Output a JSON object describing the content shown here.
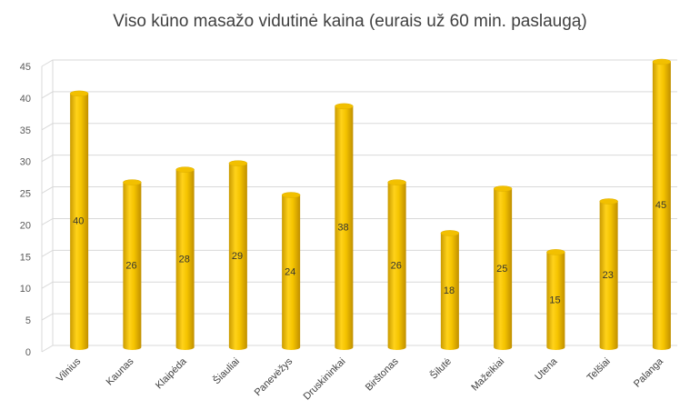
{
  "chart_data": {
    "type": "bar",
    "title": "Viso kūno masažo vidutinė kaina (eurais už 60 min. paslaugą)",
    "categories": [
      "Vilnius",
      "Kaunas",
      "Klaipėda",
      "Šiauliai",
      "Panevėžys",
      "Druskininkai",
      "Birštonas",
      "Šilutė",
      "Mažeikiai",
      "Utena",
      "Telšiai",
      "Palanga"
    ],
    "values": [
      40,
      26,
      28,
      29,
      24,
      38,
      26,
      18,
      25,
      15,
      23,
      45
    ],
    "ylim": [
      0,
      45
    ],
    "yticks": [
      0,
      5,
      10,
      15,
      20,
      25,
      30,
      35,
      40,
      45
    ],
    "grid": true,
    "legend": "none",
    "colors": {
      "bar_top": "#f2c000",
      "bar_light": "#ffd21a",
      "bar_dark": "#c89800",
      "grid": "#d9d9d9"
    }
  }
}
